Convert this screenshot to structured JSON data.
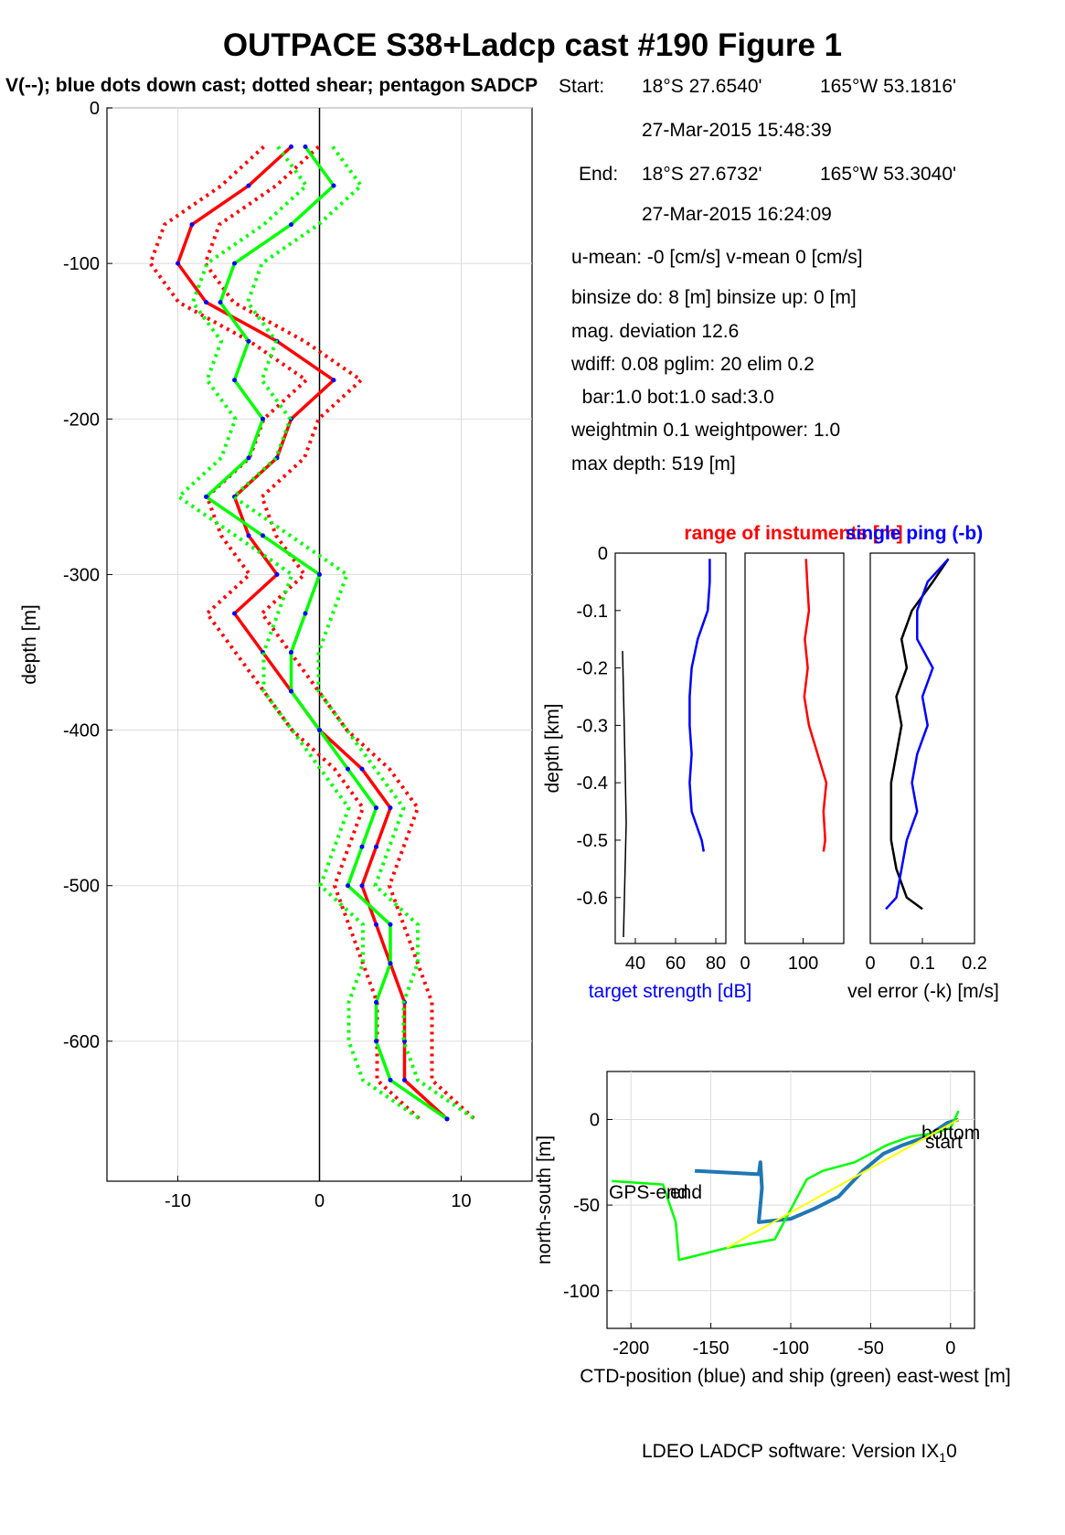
{
  "title": "OUTPACE S38+Ladcp cast #190  Figure 1",
  "subtitle": "V(--); blue dots down cast; dotted shear; pentagon SADCP",
  "info": {
    "start_label": "Start:",
    "start_lat": "18°S 27.6540'",
    "start_lon": "165°W 53.1816'",
    "start_time": "27-Mar-2015 15:48:39",
    "end_label": "End:",
    "end_lat": "18°S 27.6732'",
    "end_lon": "165°W 53.3040'",
    "end_time": "27-Mar-2015 16:24:09",
    "mean_line": "u-mean:  -0 [cm/s]    v-mean   0 [cm/s]",
    "binsize_line": "binsize do: 8 [m]  binsize up:  0 [m]",
    "magdev_line": "mag. deviation 12.6",
    "wdiff_line": "wdiff: 0.08  pglim: 20  elim 0.2",
    "bar_line": "  bar:1.0 bot:1.0 sad:3.0",
    "weight_line": "weightmin 0.1  weightpower: 1.0",
    "maxdepth_line": "max depth: 519 [m]"
  },
  "footer": "LDEO LADCP software: Version IX",
  "footer_sub": "1",
  "footer_end": "0",
  "colors": {
    "red": "#ff0000",
    "green": "#00ff00",
    "blue": "#0000ff",
    "black": "#000000",
    "yellow": "#ffff00",
    "ctd_blue": "#1f77b4"
  },
  "chart_data": [
    {
      "id": "velocity-profile",
      "type": "line",
      "xlabel": "",
      "ylabel": "depth [m]",
      "xlim": [
        -15,
        15
      ],
      "ylim": [
        -690,
        0
      ],
      "xticks": [
        -10,
        0,
        10
      ],
      "yticks": [
        -600,
        -500,
        -400,
        -300,
        -200,
        -100,
        0
      ],
      "xtick_labels": [
        "-10",
        "0",
        "10"
      ],
      "ytick_labels": [
        "-600",
        "-500",
        "-400",
        "-300",
        "-200",
        "-100",
        "0"
      ],
      "grid": true,
      "depth": [
        -25,
        -50,
        -75,
        -100,
        -125,
        -150,
        -175,
        -200,
        -225,
        -250,
        -275,
        -300,
        -325,
        -350,
        -375,
        -400,
        -425,
        -450,
        -475,
        -500,
        -525,
        -550,
        -575,
        -600,
        -625,
        -650
      ],
      "series": [
        {
          "name": "U",
          "color": "red",
          "values": [
            -2,
            -5,
            -9,
            -10,
            -8,
            -3,
            1,
            -2,
            -3,
            -6,
            -5,
            -3,
            -6,
            -4,
            -2,
            0,
            3,
            5,
            4,
            3,
            4,
            5,
            6,
            6,
            6,
            9
          ]
        },
        {
          "name": "V",
          "color": "green",
          "values": [
            -1,
            1,
            -2,
            -6,
            -7,
            -5,
            -6,
            -4,
            -5,
            -8,
            -4,
            0,
            -1,
            -2,
            -2,
            0,
            2,
            4,
            3,
            2,
            5,
            5,
            4,
            4,
            5,
            9
          ]
        }
      ]
    },
    {
      "id": "target-strength",
      "type": "line",
      "xlabel": "target strength [dB]",
      "ylabel": "depth [km]",
      "title": "range of instuments [m]",
      "xlim": [
        30,
        85
      ],
      "ylim": [
        -0.68,
        0
      ],
      "xticks": [
        40,
        60,
        80
      ],
      "yticks": [
        -0.6,
        -0.5,
        -0.4,
        -0.3,
        -0.2,
        -0.1,
        0
      ],
      "xtick_labels": [
        "40",
        "60",
        "80"
      ],
      "ytick_labels": [
        "-0.6",
        "-0.5",
        "-0.4",
        "-0.3",
        "-0.2",
        "-0.1",
        "0"
      ],
      "depth": [
        -0.01,
        -0.05,
        -0.1,
        -0.15,
        -0.2,
        -0.25,
        -0.3,
        -0.35,
        -0.4,
        -0.45,
        -0.5,
        -0.52
      ],
      "series": [
        {
          "name": "target strength",
          "color": "blue",
          "values": [
            77,
            77,
            76,
            71,
            68,
            67,
            67,
            68,
            67,
            68,
            73,
            74
          ]
        }
      ]
    },
    {
      "id": "range",
      "type": "line",
      "xlim": [
        0,
        170
      ],
      "ylim": [
        -0.68,
        0
      ],
      "xticks": [
        0,
        100
      ],
      "xtick_labels": [
        "0",
        "100"
      ],
      "depth": [
        -0.01,
        -0.05,
        -0.1,
        -0.15,
        -0.2,
        -0.25,
        -0.3,
        -0.35,
        -0.4,
        -0.45,
        -0.5,
        -0.52
      ],
      "series": [
        {
          "name": "range",
          "color": "red",
          "values": [
            105,
            107,
            110,
            103,
            108,
            102,
            110,
            125,
            140,
            135,
            138,
            135
          ]
        }
      ]
    },
    {
      "id": "velocity-error",
      "type": "line",
      "xlabel": "vel error (-k) [m/s]",
      "title": "single ping (-b)",
      "xlim": [
        0,
        0.2
      ],
      "ylim": [
        -0.68,
        0
      ],
      "xticks": [
        0,
        0.1,
        0.2
      ],
      "xtick_labels": [
        "0",
        "0.1",
        "0.2"
      ],
      "depth": [
        -0.01,
        -0.05,
        -0.1,
        -0.15,
        -0.2,
        -0.25,
        -0.3,
        -0.35,
        -0.4,
        -0.45,
        -0.5,
        -0.55,
        -0.6,
        -0.62
      ],
      "series": [
        {
          "name": "vel error",
          "color": "black",
          "values": [
            0.15,
            0.12,
            0.08,
            0.06,
            0.07,
            0.05,
            0.06,
            0.05,
            0.04,
            0.04,
            0.04,
            0.05,
            0.07,
            0.1
          ]
        },
        {
          "name": "single ping",
          "color": "blue",
          "values": [
            0.15,
            0.11,
            0.09,
            0.09,
            0.12,
            0.1,
            0.11,
            0.09,
            0.08,
            0.09,
            0.07,
            0.06,
            0.05,
            0.03
          ]
        }
      ]
    },
    {
      "id": "track",
      "type": "line",
      "xlabel": "CTD-position (blue) and ship (green) east-west [m]",
      "ylabel": "north-south [m]",
      "xlim": [
        -215,
        15
      ],
      "ylim": [
        -122,
        28
      ],
      "xticks": [
        -200,
        -150,
        -100,
        -50,
        0
      ],
      "yticks": [
        -100,
        -50,
        0
      ],
      "xtick_labels": [
        "-200",
        "-150",
        "-100",
        "-50",
        "0"
      ],
      "ytick_labels": [
        "-100",
        "-50",
        "0"
      ],
      "grid": true,
      "annotations": [
        "bottom",
        "start",
        "GPS-end",
        "end"
      ],
      "series": [
        {
          "name": "CTD-position",
          "color": "ctd_blue",
          "x": [
            5,
            -2,
            -15,
            -30,
            -42,
            -55,
            -70,
            -85,
            -100,
            -120,
            -118,
            -119,
            -120,
            -160
          ],
          "y": [
            0,
            -2,
            -10,
            -15,
            -20,
            -30,
            -45,
            -52,
            -58,
            -60,
            -40,
            -25,
            -32,
            -30
          ]
        },
        {
          "name": "ship",
          "color": "green",
          "x": [
            5,
            0,
            -10,
            -25,
            -40,
            -60,
            -80,
            -90,
            -110,
            -140,
            -170,
            -172,
            -180,
            -212
          ],
          "y": [
            5,
            -5,
            -8,
            -10,
            -15,
            -25,
            -30,
            -35,
            -70,
            -75,
            -82,
            -60,
            -38,
            -36
          ]
        }
      ]
    }
  ]
}
